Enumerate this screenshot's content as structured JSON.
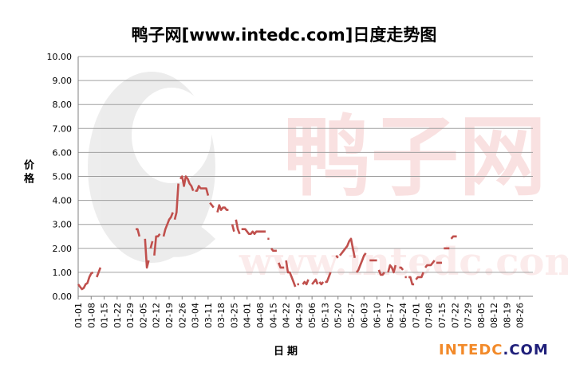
{
  "chart_data": {
    "type": "line",
    "title": "鸭子网[www.intedc.com]日度走势图",
    "xlabel": "日期",
    "ylabel": "价格",
    "ylim": [
      0,
      10
    ],
    "y_ticks": [
      "0.00",
      "1.00",
      "2.00",
      "3.00",
      "4.00",
      "5.00",
      "6.00",
      "7.00",
      "8.00",
      "9.00",
      "10.00"
    ],
    "x_ticks": [
      "01-01",
      "01-08",
      "01-15",
      "01-22",
      "01-29",
      "02-05",
      "02-12",
      "02-19",
      "02-26",
      "03-04",
      "03-11",
      "03-18",
      "03-25",
      "04-01",
      "04-08",
      "04-15",
      "04-22",
      "04-29",
      "05-06",
      "05-13",
      "05-20",
      "05-27",
      "06-03",
      "06-10",
      "06-17",
      "06-24",
      "07-01",
      "07-08",
      "07-15",
      "07-22",
      "07-29",
      "08-05",
      "08-12",
      "08-19",
      "08-26"
    ],
    "grid": "horizontal",
    "color": "#c0504d",
    "x_unit": "day index (0 = 01-01, 7 days per tick)",
    "segments": [
      [
        [
          0,
          0.5
        ],
        [
          1,
          0.4
        ],
        [
          2,
          0.3
        ],
        [
          3,
          0.35
        ],
        [
          4,
          0.5
        ],
        [
          5,
          0.55
        ],
        [
          6,
          0.8
        ],
        [
          7,
          0.95
        ],
        [
          8,
          1.0
        ]
      ],
      [
        [
          10,
          0.8
        ],
        [
          11,
          1.0
        ],
        [
          12,
          1.2
        ]
      ],
      [
        [
          31,
          2.8
        ],
        [
          32,
          2.8
        ],
        [
          33,
          2.5
        ]
      ],
      [
        [
          36,
          2.4
        ],
        [
          37,
          1.2
        ],
        [
          38,
          1.5
        ]
      ],
      [
        [
          39,
          2.0
        ],
        [
          40,
          2.3
        ]
      ],
      [
        [
          41,
          1.7
        ],
        [
          42,
          2.5
        ],
        [
          43,
          2.5
        ],
        [
          44,
          2.6
        ]
      ],
      [
        [
          46,
          2.5
        ],
        [
          47,
          2.8
        ],
        [
          48,
          3.0
        ],
        [
          49,
          3.2
        ],
        [
          50,
          3.3
        ],
        [
          51,
          3.5
        ]
      ],
      [
        [
          52,
          3.2
        ],
        [
          53,
          3.5
        ],
        [
          54,
          4.7
        ]
      ],
      [
        [
          55,
          4.9
        ],
        [
          56,
          5.0
        ],
        [
          57,
          4.6
        ],
        [
          58,
          5.0
        ],
        [
          59,
          4.9
        ],
        [
          60,
          4.7
        ],
        [
          61,
          4.6
        ],
        [
          62,
          4.4
        ]
      ],
      [
        [
          63,
          4.4
        ],
        [
          64,
          4.4
        ],
        [
          65,
          4.6
        ],
        [
          66,
          4.5
        ],
        [
          67,
          4.5
        ],
        [
          68,
          4.5
        ],
        [
          69,
          4.5
        ],
        [
          70,
          4.2
        ]
      ],
      [
        [
          71,
          3.9
        ],
        [
          72,
          3.8
        ],
        [
          73,
          3.7
        ]
      ],
      [
        [
          75,
          3.5
        ],
        [
          76,
          3.8
        ],
        [
          77,
          3.6
        ],
        [
          78,
          3.7
        ],
        [
          79,
          3.7
        ],
        [
          80,
          3.6
        ],
        [
          81,
          3.6
        ]
      ],
      [
        [
          83,
          3.0
        ],
        [
          84,
          2.7
        ]
      ],
      [
        [
          85,
          3.2
        ],
        [
          86,
          2.8
        ],
        [
          87,
          2.6
        ]
      ],
      [
        [
          88,
          2.8
        ],
        [
          89,
          2.8
        ],
        [
          90,
          2.8
        ],
        [
          91,
          2.7
        ],
        [
          92,
          2.6
        ],
        [
          93,
          2.6
        ],
        [
          94,
          2.7
        ],
        [
          95,
          2.6
        ],
        [
          96,
          2.7
        ],
        [
          97,
          2.7
        ],
        [
          98,
          2.7
        ],
        [
          99,
          2.7
        ],
        [
          100,
          2.7
        ],
        [
          101,
          2.7
        ]
      ],
      [
        [
          102,
          2.4
        ],
        [
          103,
          2.4
        ]
      ],
      [
        [
          104,
          2.0
        ],
        [
          105,
          1.9
        ],
        [
          106,
          1.9
        ],
        [
          107,
          1.9
        ]
      ],
      [
        [
          108,
          1.4
        ],
        [
          109,
          1.2
        ],
        [
          110,
          1.2
        ],
        [
          111,
          1.2
        ]
      ],
      [
        [
          112,
          1.5
        ],
        [
          113,
          1.0
        ],
        [
          114,
          1.0
        ],
        [
          115,
          0.8
        ],
        [
          116,
          0.6
        ],
        [
          117,
          0.4
        ]
      ],
      [
        [
          118,
          0.5
        ],
        [
          119,
          0.5
        ]
      ],
      [
        [
          121,
          0.5
        ],
        [
          122,
          0.6
        ],
        [
          123,
          0.5
        ],
        [
          124,
          0.7
        ]
      ],
      [
        [
          126,
          0.5
        ],
        [
          127,
          0.6
        ],
        [
          128,
          0.7
        ],
        [
          129,
          0.5
        ]
      ],
      [
        [
          130,
          0.6
        ],
        [
          131,
          0.5
        ],
        [
          132,
          0.6
        ]
      ],
      [
        [
          133,
          0.6
        ],
        [
          134,
          0.6
        ],
        [
          135,
          0.8
        ],
        [
          136,
          1.0
        ]
      ],
      [
        [
          139,
          1.7
        ],
        [
          140,
          1.6
        ]
      ],
      [
        [
          141,
          1.7
        ],
        [
          142,
          1.8
        ],
        [
          143,
          1.9
        ],
        [
          144,
          2.0
        ],
        [
          145,
          2.1
        ],
        [
          146,
          2.3
        ],
        [
          147,
          2.4
        ],
        [
          148,
          2.0
        ],
        [
          149,
          1.6
        ]
      ],
      [
        [
          150,
          1.0
        ],
        [
          151,
          1.1
        ],
        [
          152,
          1.3
        ],
        [
          153,
          1.5
        ],
        [
          154,
          1.7
        ],
        [
          155,
          1.8
        ]
      ],
      [
        [
          157,
          1.5
        ],
        [
          158,
          1.5
        ],
        [
          159,
          1.5
        ],
        [
          160,
          1.5
        ],
        [
          161,
          1.5
        ]
      ],
      [
        [
          162,
          1.1
        ],
        [
          163,
          0.9
        ],
        [
          164,
          0.9
        ],
        [
          165,
          1.0
        ]
      ],
      [
        [
          167,
          1.0
        ],
        [
          168,
          1.3
        ],
        [
          169,
          1.2
        ],
        [
          170,
          1.0
        ],
        [
          171,
          1.3
        ]
      ],
      [
        [
          173,
          1.2
        ],
        [
          174,
          1.2
        ],
        [
          175,
          1.1
        ]
      ],
      [
        [
          176,
          0.8
        ],
        [
          177,
          0.8
        ]
      ],
      [
        [
          178,
          0.8
        ],
        [
          179,
          0.8
        ],
        [
          180,
          0.5
        ],
        [
          181,
          0.5
        ]
      ],
      [
        [
          182,
          0.7
        ],
        [
          183,
          0.8
        ],
        [
          184,
          0.8
        ],
        [
          185,
          0.8
        ],
        [
          186,
          1.0
        ]
      ],
      [
        [
          187,
          1.2
        ],
        [
          188,
          1.3
        ],
        [
          189,
          1.3
        ],
        [
          190,
          1.3
        ],
        [
          191,
          1.4
        ],
        [
          192,
          1.5
        ]
      ],
      [
        [
          193,
          1.4
        ],
        [
          194,
          1.4
        ],
        [
          195,
          1.4
        ],
        [
          196,
          1.4
        ]
      ],
      [
        [
          197,
          2.0
        ],
        [
          198,
          2.0
        ],
        [
          199,
          2.0
        ],
        [
          200,
          2.0
        ]
      ],
      [
        [
          201,
          2.4
        ],
        [
          202,
          2.5
        ],
        [
          203,
          2.5
        ],
        [
          204,
          2.5
        ]
      ]
    ]
  },
  "watermark": {
    "brand_part1": "INTEDC",
    "brand_part2": ".COM"
  }
}
